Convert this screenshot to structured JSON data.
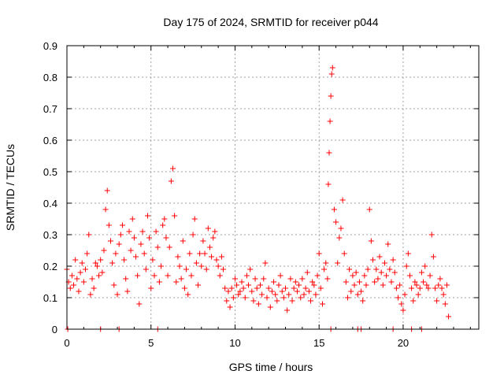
{
  "chart_data": {
    "type": "scatter",
    "title": "Day 175 of 2024, SRMTID for receiver p044",
    "xlabel": "GPS time / hours",
    "ylabel": "SRMTID / TECUs",
    "xlim": [
      0,
      24.5
    ],
    "ylim": [
      0,
      0.9
    ],
    "xticks": [
      0,
      5,
      10,
      15,
      20
    ],
    "xtick_labels": [
      "0",
      "5",
      "10",
      "15",
      "20"
    ],
    "yticks": [
      0,
      0.1,
      0.2,
      0.3,
      0.4,
      0.5,
      0.6,
      0.7,
      0.8,
      0.9
    ],
    "ytick_labels": [
      "0",
      "0.1",
      "0.2",
      "0.3",
      "0.4",
      "0.5",
      "0.6",
      "0.7",
      "0.8",
      "0.9"
    ],
    "grid": true,
    "marker": "plus",
    "color": "#ff0000",
    "series": [
      {
        "name": "SRMTID",
        "x": [
          0.0,
          0.1,
          0.2,
          0.3,
          0.4,
          0.5,
          0.6,
          0.7,
          0.8,
          0.9,
          1.0,
          1.1,
          1.2,
          1.3,
          1.4,
          1.5,
          1.6,
          1.7,
          1.8,
          1.9,
          2.0,
          2.1,
          2.2,
          2.3,
          2.4,
          2.5,
          2.6,
          2.7,
          2.8,
          2.9,
          3.0,
          3.1,
          3.2,
          3.3,
          3.4,
          3.5,
          3.6,
          3.7,
          3.8,
          3.9,
          4.0,
          4.1,
          4.2,
          4.3,
          4.4,
          4.5,
          4.6,
          4.7,
          4.8,
          4.9,
          5.0,
          5.1,
          5.2,
          5.3,
          5.4,
          5.5,
          5.6,
          5.7,
          5.8,
          5.9,
          6.0,
          6.1,
          6.2,
          6.3,
          6.4,
          6.5,
          6.6,
          6.7,
          6.8,
          6.9,
          7.0,
          7.1,
          7.2,
          7.3,
          7.4,
          7.5,
          7.6,
          7.7,
          7.8,
          7.9,
          8.0,
          8.1,
          8.2,
          8.3,
          8.4,
          8.5,
          8.6,
          8.7,
          8.8,
          8.9,
          9.0,
          9.1,
          9.2,
          9.3,
          9.4,
          9.5,
          9.6,
          9.7,
          9.8,
          9.9,
          10.0,
          10.1,
          10.2,
          10.3,
          10.4,
          10.5,
          10.6,
          10.7,
          10.8,
          10.9,
          11.0,
          11.1,
          11.2,
          11.3,
          11.4,
          11.5,
          11.6,
          11.7,
          11.8,
          11.9,
          12.0,
          12.1,
          12.2,
          12.3,
          12.4,
          12.5,
          12.6,
          12.7,
          12.8,
          12.9,
          13.0,
          13.1,
          13.2,
          13.3,
          13.4,
          13.5,
          13.6,
          13.7,
          13.8,
          13.9,
          14.0,
          14.1,
          14.2,
          14.3,
          14.4,
          14.5,
          14.6,
          14.7,
          14.8,
          14.9,
          15.0,
          15.1,
          15.2,
          15.3,
          15.4,
          15.5,
          15.55,
          15.6,
          15.65,
          15.7,
          15.75,
          15.8,
          15.9,
          16.0,
          16.1,
          16.2,
          16.3,
          16.4,
          16.5,
          16.6,
          16.7,
          16.8,
          16.9,
          17.0,
          17.1,
          17.2,
          17.3,
          17.4,
          17.5,
          17.6,
          17.7,
          17.8,
          17.9,
          18.0,
          18.1,
          18.2,
          18.3,
          18.4,
          18.5,
          18.6,
          18.7,
          18.8,
          18.9,
          19.0,
          19.1,
          19.2,
          19.3,
          19.4,
          19.5,
          19.6,
          19.7,
          19.8,
          19.9,
          20.0,
          20.1,
          20.2,
          20.3,
          20.4,
          20.5,
          20.6,
          20.7,
          20.8,
          20.9,
          21.0,
          21.1,
          21.2,
          21.3,
          21.4,
          21.5,
          21.6,
          21.7,
          21.8,
          21.9,
          22.0,
          22.1,
          22.2,
          22.3,
          22.4,
          22.5,
          22.6,
          22.7,
          0.05,
          2.0,
          3.1,
          5.4,
          15.7,
          17.3,
          17.5,
          19.4,
          20.5,
          21.1
        ],
        "y": [
          0.19,
          0.15,
          0.13,
          0.17,
          0.14,
          0.22,
          0.16,
          0.12,
          0.18,
          0.21,
          0.15,
          0.19,
          0.24,
          0.3,
          0.11,
          0.16,
          0.13,
          0.21,
          0.2,
          0.17,
          0.22,
          0.18,
          0.25,
          0.38,
          0.44,
          0.33,
          0.28,
          0.21,
          0.14,
          0.24,
          0.11,
          0.27,
          0.3,
          0.33,
          0.22,
          0.16,
          0.12,
          0.31,
          0.25,
          0.35,
          0.29,
          0.23,
          0.17,
          0.08,
          0.27,
          0.31,
          0.24,
          0.19,
          0.36,
          0.29,
          0.13,
          0.22,
          0.17,
          0.31,
          0.26,
          0.15,
          0.2,
          0.33,
          0.35,
          0.29,
          0.17,
          0.26,
          0.47,
          0.51,
          0.36,
          0.15,
          0.23,
          0.2,
          0.16,
          0.28,
          0.13,
          0.19,
          0.11,
          0.24,
          0.17,
          0.3,
          0.35,
          0.21,
          0.14,
          0.24,
          0.2,
          0.28,
          0.24,
          0.19,
          0.32,
          0.26,
          0.23,
          0.29,
          0.31,
          0.22,
          0.2,
          0.17,
          0.23,
          0.19,
          0.13,
          0.09,
          0.12,
          0.07,
          0.13,
          0.1,
          0.16,
          0.14,
          0.11,
          0.12,
          0.15,
          0.13,
          0.1,
          0.17,
          0.14,
          0.19,
          0.12,
          0.09,
          0.16,
          0.13,
          0.08,
          0.14,
          0.11,
          0.16,
          0.21,
          0.1,
          0.13,
          0.07,
          0.12,
          0.15,
          0.11,
          0.09,
          0.14,
          0.17,
          0.12,
          0.1,
          0.13,
          0.06,
          0.11,
          0.16,
          0.09,
          0.13,
          0.15,
          0.12,
          0.14,
          0.1,
          0.16,
          0.11,
          0.13,
          0.18,
          0.12,
          0.09,
          0.15,
          0.14,
          0.11,
          0.17,
          0.24,
          0.13,
          0.08,
          0.19,
          0.21,
          0.16,
          0.46,
          0.56,
          0.66,
          0.74,
          0.81,
          0.83,
          0.38,
          0.34,
          0.21,
          0.29,
          0.32,
          0.41,
          0.24,
          0.15,
          0.1,
          0.19,
          0.12,
          0.17,
          0.14,
          0.18,
          0.11,
          0.15,
          0.12,
          0.09,
          0.17,
          0.14,
          0.19,
          0.38,
          0.28,
          0.22,
          0.15,
          0.19,
          0.16,
          0.23,
          0.18,
          0.14,
          0.21,
          0.17,
          0.27,
          0.19,
          0.15,
          0.22,
          0.18,
          0.13,
          0.1,
          0.14,
          0.08,
          0.06,
          0.11,
          0.2,
          0.24,
          0.17,
          0.13,
          0.09,
          0.15,
          0.14,
          0.11,
          0.13,
          0.18,
          0.15,
          0.2,
          0.14,
          0.13,
          0.17,
          0.3,
          0.23,
          0.13,
          0.09,
          0.14,
          0.16,
          0.13,
          0.11,
          0.08,
          0.14,
          0.04,
          0.0,
          0.0,
          0.0,
          0.0,
          0.0,
          0.0,
          0.0,
          0.0,
          0.0,
          0.0
        ]
      }
    ]
  }
}
